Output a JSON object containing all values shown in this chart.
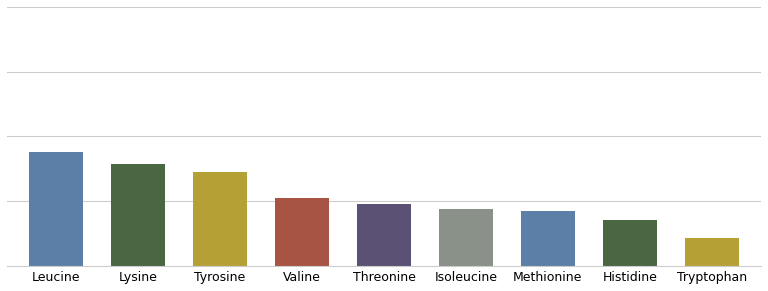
{
  "categories": [
    "Leucine",
    "Lysine",
    "Tyrosine",
    "Valine",
    "Threonine",
    "Isoleucine",
    "Methionine",
    "Histidine",
    "Tryptophan"
  ],
  "values": [
    7.0,
    6.3,
    5.8,
    4.2,
    3.8,
    3.5,
    3.4,
    2.8,
    1.7
  ],
  "colors": [
    "#5b7fa6",
    "#4a6741",
    "#b5a036",
    "#a85444",
    "#5a5175",
    "#8a9189",
    "#5b7fa6",
    "#4a6741",
    "#b5a036"
  ],
  "ylim": [
    0,
    16
  ],
  "yticks": [
    4,
    8,
    12,
    16
  ],
  "background_color": "#ffffff",
  "grid_color": "#cccccc",
  "xlabel_fontsize": 9,
  "bar_width": 0.65
}
